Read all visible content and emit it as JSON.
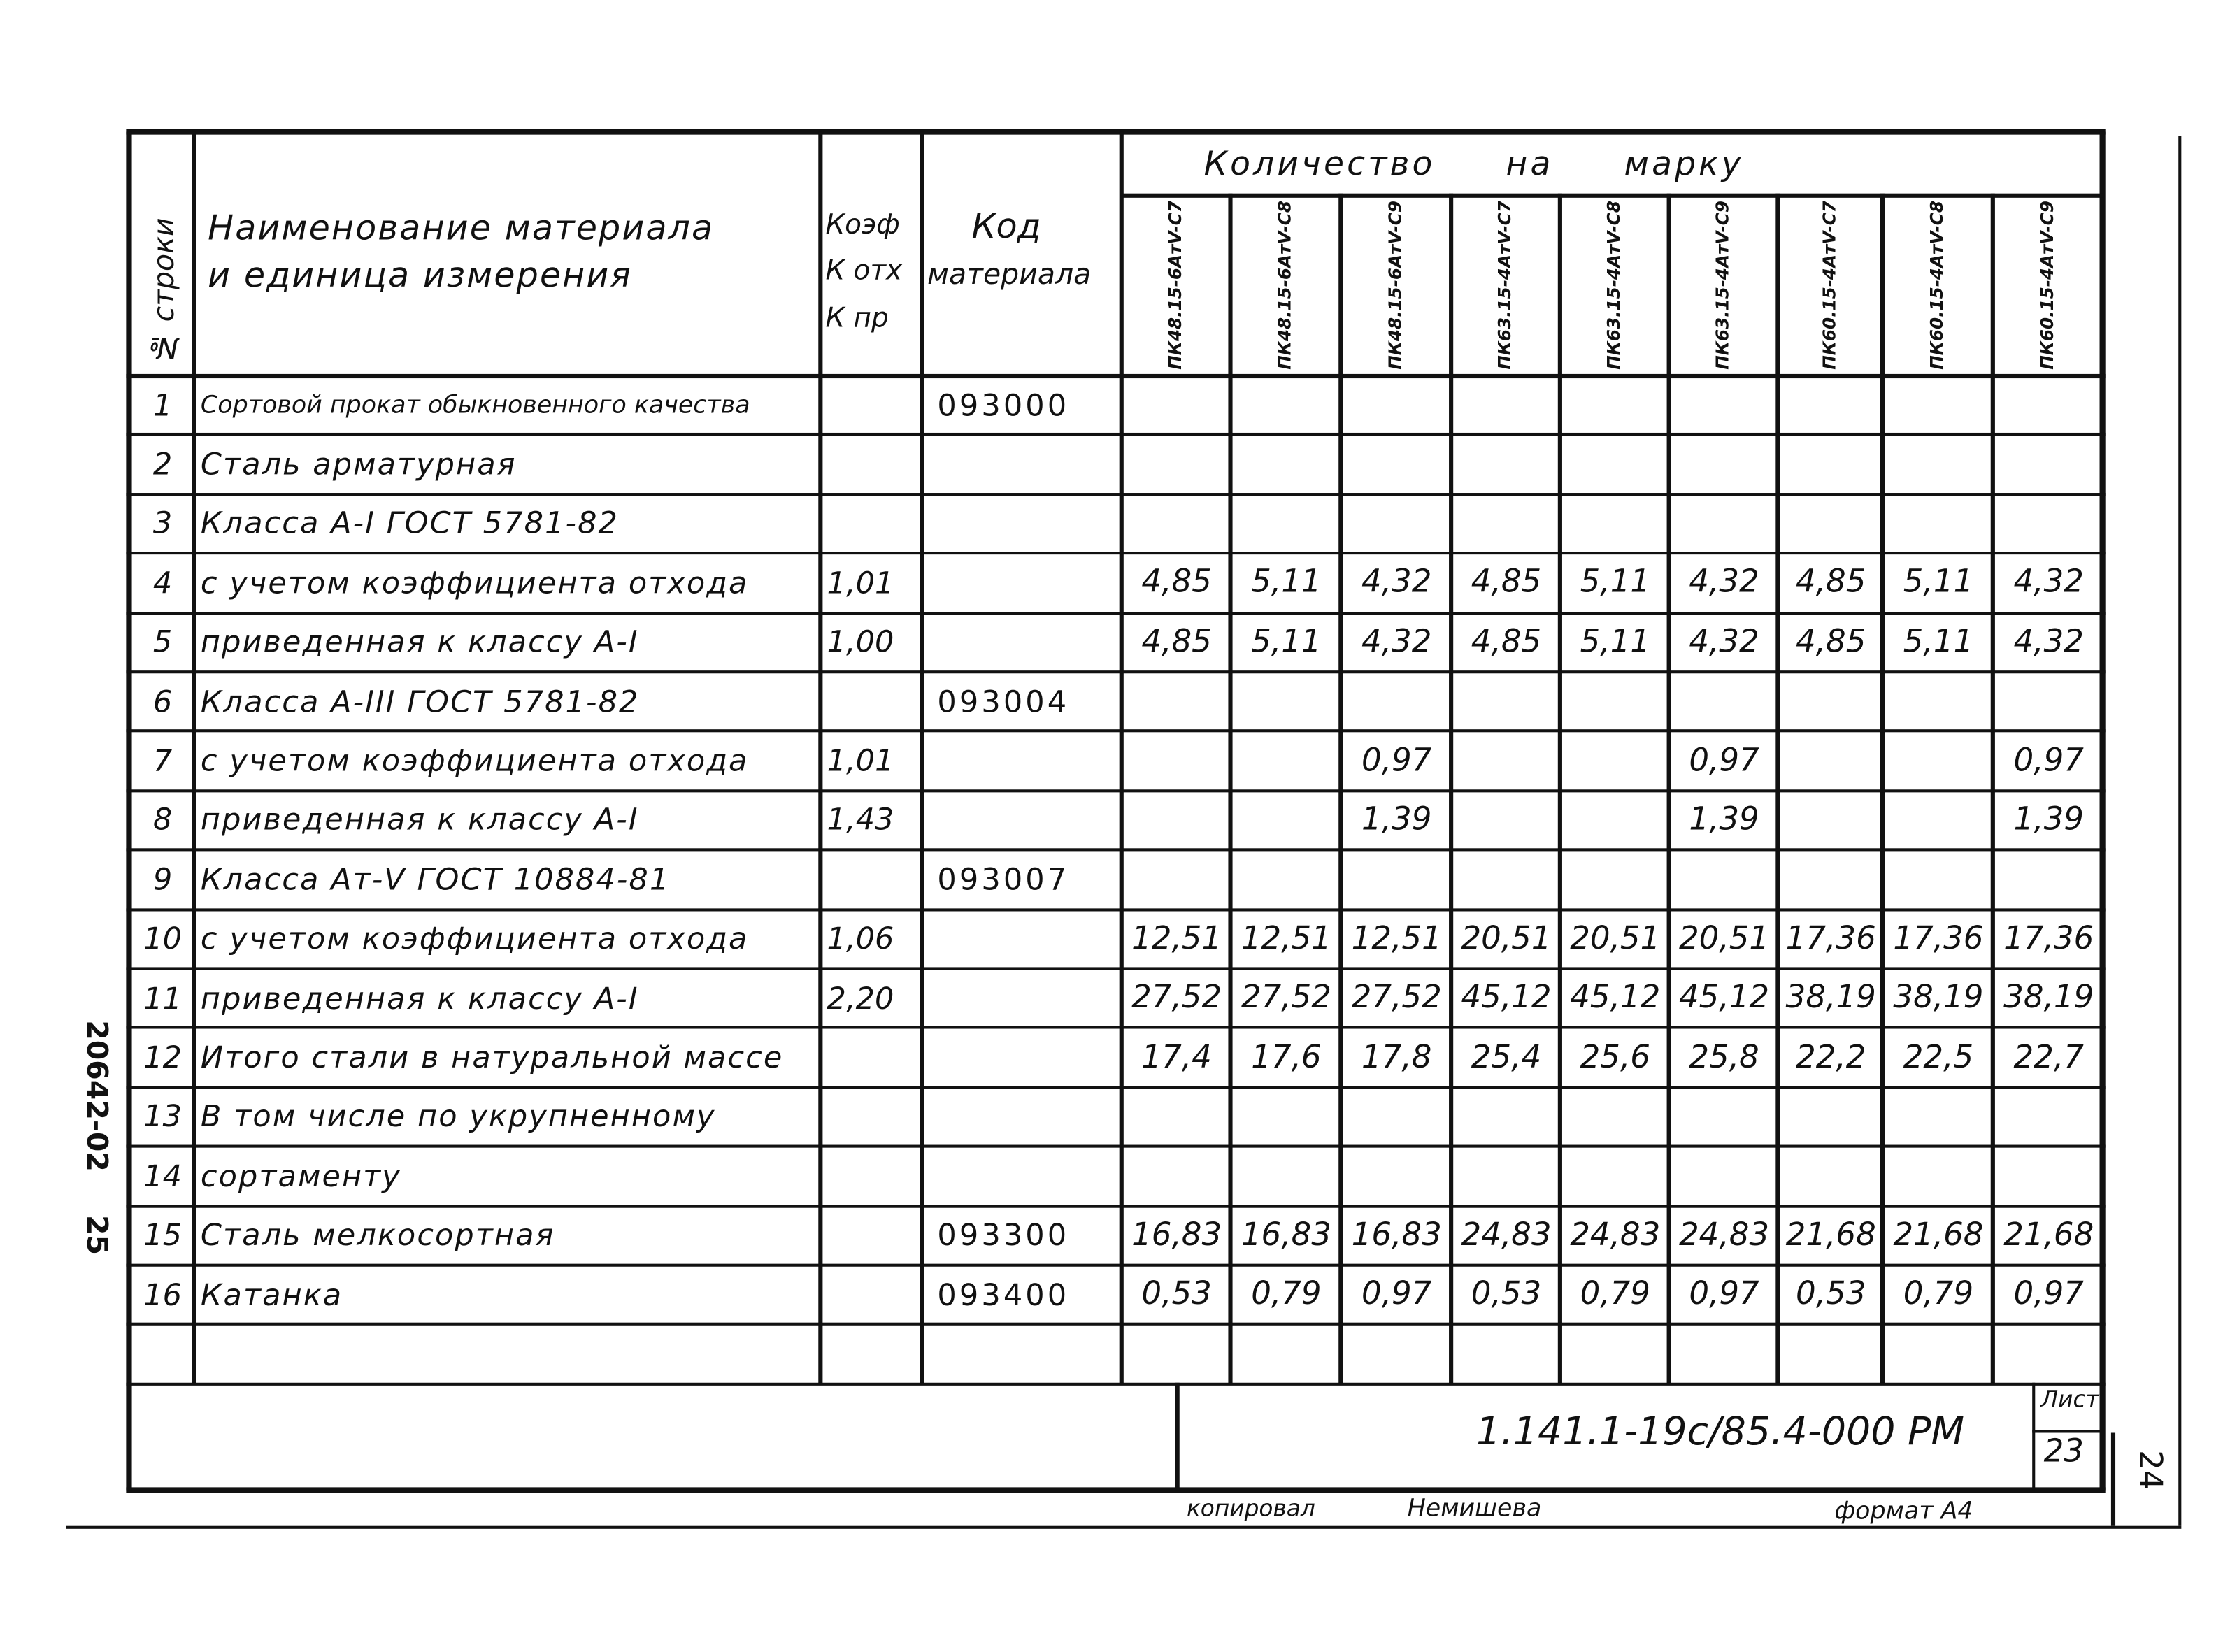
{
  "header": {
    "row_no": "№ строки",
    "name_line1": "Наименование материала",
    "name_line2": "и единица измерения",
    "coef_line1": "Коэф",
    "coef_line2": "К отх",
    "coef_line3": "К пр",
    "code_line1": "Код",
    "code_line2": "материала",
    "qty_title": "Количество на марку",
    "marks": [
      "ПК48.15-6АтV-С7",
      "ПК48.15-6АтV-С8",
      "ПК48.15-6АтV-С9",
      "ПК63.15-4АтV-С7",
      "ПК63.15-4АтV-С8",
      "ПК63.15-4АтV-С9",
      "ПК60.15-4АтV-С7",
      "ПК60.15-4АтV-С8",
      "ПК60.15-4АтV-С9"
    ]
  },
  "rows": [
    {
      "n": "1",
      "name": "Сортовой прокат обыкновенного качества",
      "coef": "",
      "code": "093000",
      "v": [
        "",
        "",
        "",
        "",
        "",
        "",
        "",
        "",
        ""
      ]
    },
    {
      "n": "2",
      "name": "Сталь арматурная",
      "coef": "",
      "code": "",
      "v": [
        "",
        "",
        "",
        "",
        "",
        "",
        "",
        "",
        ""
      ]
    },
    {
      "n": "3",
      "name": "Класса А-I ГОСТ 5781-82",
      "coef": "",
      "code": "",
      "v": [
        "",
        "",
        "",
        "",
        "",
        "",
        "",
        "",
        ""
      ]
    },
    {
      "n": "4",
      "name": "с учетом коэффициента отхода",
      "coef": "1,01",
      "code": "",
      "v": [
        "4,85",
        "5,11",
        "4,32",
        "4,85",
        "5,11",
        "4,32",
        "4,85",
        "5,11",
        "4,32"
      ]
    },
    {
      "n": "5",
      "name": "приведенная к классу А-I",
      "coef": "1,00",
      "code": "",
      "v": [
        "4,85",
        "5,11",
        "4,32",
        "4,85",
        "5,11",
        "4,32",
        "4,85",
        "5,11",
        "4,32"
      ]
    },
    {
      "n": "6",
      "name": "Класса А-III ГОСТ 5781-82",
      "coef": "",
      "code": "093004",
      "v": [
        "",
        "",
        "",
        "",
        "",
        "",
        "",
        "",
        ""
      ]
    },
    {
      "n": "7",
      "name": "с учетом коэффициента отхода",
      "coef": "1,01",
      "code": "",
      "v": [
        "",
        "",
        "0,97",
        "",
        "",
        "0,97",
        "",
        "",
        "0,97"
      ]
    },
    {
      "n": "8",
      "name": "приведенная к классу А-I",
      "coef": "1,43",
      "code": "",
      "v": [
        "",
        "",
        "1,39",
        "",
        "",
        "1,39",
        "",
        "",
        "1,39"
      ]
    },
    {
      "n": "9",
      "name": "Класса Ат-V ГОСТ 10884-81",
      "coef": "",
      "code": "093007",
      "v": [
        "",
        "",
        "",
        "",
        "",
        "",
        "",
        "",
        ""
      ]
    },
    {
      "n": "10",
      "name": "с учетом коэффициента отхода",
      "coef": "1,06",
      "code": "",
      "v": [
        "12,51",
        "12,51",
        "12,51",
        "20,51",
        "20,51",
        "20,51",
        "17,36",
        "17,36",
        "17,36"
      ]
    },
    {
      "n": "11",
      "name": "приведенная к классу А-I",
      "coef": "2,20",
      "code": "",
      "v": [
        "27,52",
        "27,52",
        "27,52",
        "45,12",
        "45,12",
        "45,12",
        "38,19",
        "38,19",
        "38,19"
      ]
    },
    {
      "n": "12",
      "name": "Итого стали в натуральной массе",
      "coef": "",
      "code": "",
      "v": [
        "17,4",
        "17,6",
        "17,8",
        "25,4",
        "25,6",
        "25,8",
        "22,2",
        "22,5",
        "22,7"
      ]
    },
    {
      "n": "13",
      "name": "В том числе по укрупненному",
      "coef": "",
      "code": "",
      "v": [
        "",
        "",
        "",
        "",
        "",
        "",
        "",
        "",
        ""
      ]
    },
    {
      "n": "14",
      "name": "сортаменту",
      "coef": "",
      "code": "",
      "v": [
        "",
        "",
        "",
        "",
        "",
        "",
        "",
        "",
        ""
      ]
    },
    {
      "n": "15",
      "name": "Сталь мелкосортная",
      "coef": "",
      "code": "093300",
      "v": [
        "16,83",
        "16,83",
        "16,83",
        "24,83",
        "24,83",
        "24,83",
        "21,68",
        "21,68",
        "21,68"
      ]
    },
    {
      "n": "16",
      "name": "Катанка",
      "coef": "",
      "code": "093400",
      "v": [
        "0,53",
        "0,79",
        "0,97",
        "0,53",
        "0,79",
        "0,97",
        "0,53",
        "0,79",
        "0,97"
      ]
    }
  ],
  "stamp": {
    "doc_code": "1.141.1-19с/85.4-000 РМ",
    "sheet_label": "Лист",
    "sheet_no": "23"
  },
  "side": {
    "inv": "20642-02",
    "num": "25",
    "page": "24"
  },
  "footer": {
    "copied_label": "копировал",
    "copied_by": "Немишева",
    "format": "формат А4"
  }
}
